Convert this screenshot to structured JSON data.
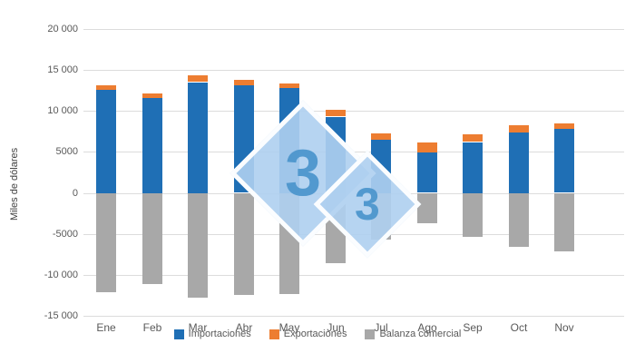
{
  "chart_data": {
    "type": "bar",
    "stacked": true,
    "title": "",
    "xlabel": "",
    "ylabel": "Miles de dólares",
    "ylim": [
      -15000,
      20000
    ],
    "grid": true,
    "legend_position": "bottom",
    "categories": [
      "Ene",
      "Feb",
      "Mar",
      "Abr",
      "May",
      "Jun",
      "Jul",
      "Ago",
      "Sep",
      "Oct",
      "Nov"
    ],
    "y_ticks": [
      {
        "value": 20000,
        "label": "20 000"
      },
      {
        "value": 15000,
        "label": "15 000"
      },
      {
        "value": 10000,
        "label": "10 000"
      },
      {
        "value": 5000,
        "label": "5000"
      },
      {
        "value": 0,
        "label": "0"
      },
      {
        "value": -5000,
        "label": "-5000"
      },
      {
        "value": -10000,
        "label": "-10 000"
      },
      {
        "value": -15000,
        "label": "-15 000"
      }
    ],
    "series": [
      {
        "name": "Importaciones",
        "color": "#1F6FB5",
        "values": [
          12600,
          11600,
          13500,
          13100,
          12800,
          9300,
          6500,
          4900,
          6200,
          7400,
          7800
        ]
      },
      {
        "name": "Exportaciones",
        "color": "#ED7D31",
        "values": [
          500,
          500,
          800,
          700,
          500,
          800,
          800,
          1200,
          900,
          900,
          700
        ]
      },
      {
        "name": "Balanza comercial",
        "color": "#A8A8A8",
        "values": [
          -12100,
          -11100,
          -12700,
          -12400,
          -12300,
          -8500,
          -5700,
          -3700,
          -5300,
          -6500,
          -7100
        ]
      }
    ]
  },
  "watermark": {
    "digit1": "3",
    "digit2": "3"
  }
}
